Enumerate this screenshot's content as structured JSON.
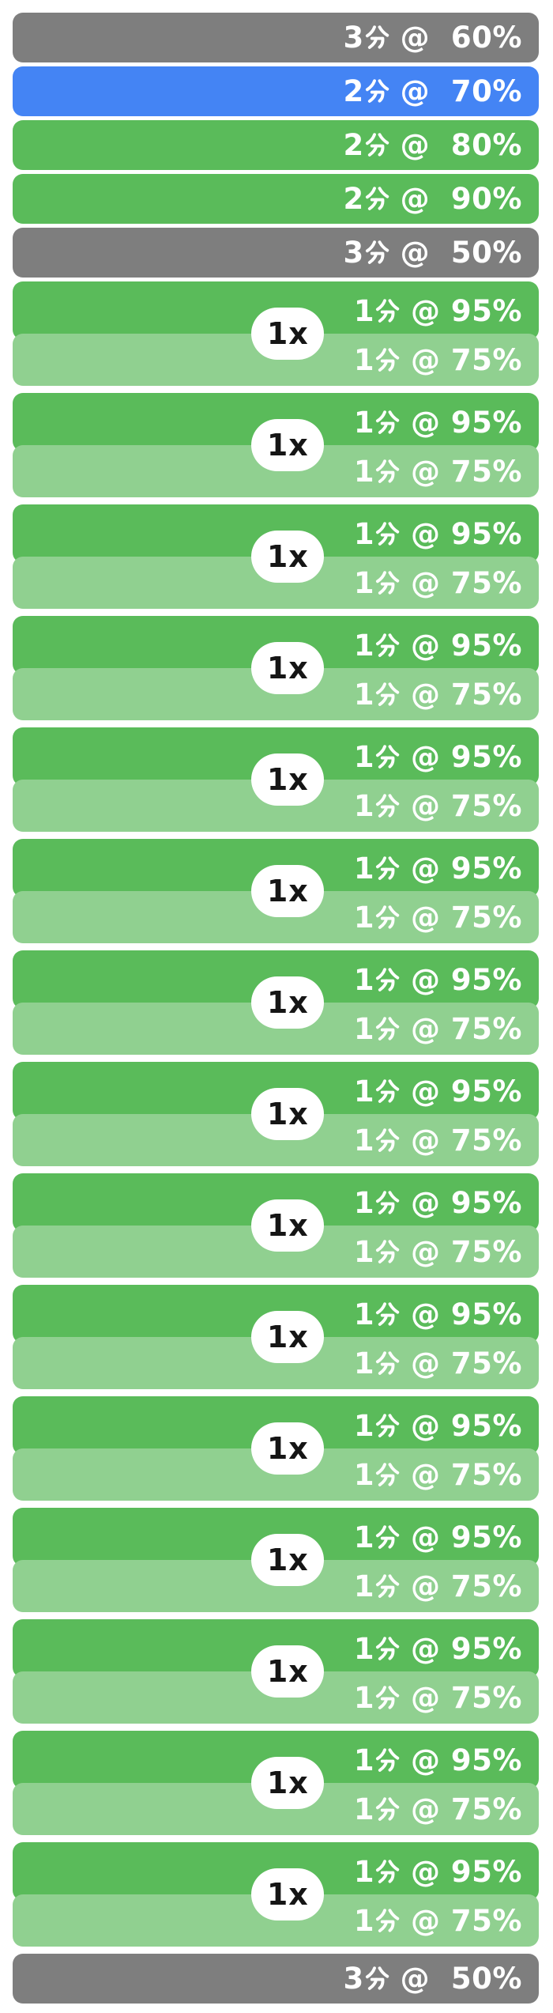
{
  "colors": {
    "gray": "#7e7e7e",
    "blue": "#4484f4",
    "green": "#5abb5a",
    "green_light": "#90d090",
    "bar_text": "#ffffff",
    "badge_bg": "#ffffff",
    "badge_text": "#151515",
    "page_bg": "#ffffff"
  },
  "intervals": [
    {
      "type": "single",
      "color": "gray",
      "label": "3分 @  60%"
    },
    {
      "type": "single",
      "color": "blue",
      "label": "2分 @  70%"
    },
    {
      "type": "single",
      "color": "green",
      "label": "2分 @  80%"
    },
    {
      "type": "single",
      "color": "green",
      "label": "2分 @  90%"
    },
    {
      "type": "single",
      "color": "gray",
      "label": "3分 @  50%"
    },
    {
      "type": "repeat",
      "badge": "1x",
      "top": {
        "color": "green",
        "label": "1分 @ 95%"
      },
      "bottom": {
        "color": "green_light",
        "label": "1分 @ 75%"
      }
    },
    {
      "type": "repeat",
      "badge": "1x",
      "top": {
        "color": "green",
        "label": "1分 @ 95%"
      },
      "bottom": {
        "color": "green_light",
        "label": "1分 @ 75%"
      }
    },
    {
      "type": "repeat",
      "badge": "1x",
      "top": {
        "color": "green",
        "label": "1分 @ 95%"
      },
      "bottom": {
        "color": "green_light",
        "label": "1分 @ 75%"
      }
    },
    {
      "type": "repeat",
      "badge": "1x",
      "top": {
        "color": "green",
        "label": "1分 @ 95%"
      },
      "bottom": {
        "color": "green_light",
        "label": "1分 @ 75%"
      }
    },
    {
      "type": "repeat",
      "badge": "1x",
      "top": {
        "color": "green",
        "label": "1分 @ 95%"
      },
      "bottom": {
        "color": "green_light",
        "label": "1分 @ 75%"
      }
    },
    {
      "type": "repeat",
      "badge": "1x",
      "top": {
        "color": "green",
        "label": "1分 @ 95%"
      },
      "bottom": {
        "color": "green_light",
        "label": "1分 @ 75%"
      }
    },
    {
      "type": "repeat",
      "badge": "1x",
      "top": {
        "color": "green",
        "label": "1分 @ 95%"
      },
      "bottom": {
        "color": "green_light",
        "label": "1分 @ 75%"
      }
    },
    {
      "type": "repeat",
      "badge": "1x",
      "top": {
        "color": "green",
        "label": "1分 @ 95%"
      },
      "bottom": {
        "color": "green_light",
        "label": "1分 @ 75%"
      }
    },
    {
      "type": "repeat",
      "badge": "1x",
      "top": {
        "color": "green",
        "label": "1分 @ 95%"
      },
      "bottom": {
        "color": "green_light",
        "label": "1分 @ 75%"
      }
    },
    {
      "type": "repeat",
      "badge": "1x",
      "top": {
        "color": "green",
        "label": "1分 @ 95%"
      },
      "bottom": {
        "color": "green_light",
        "label": "1分 @ 75%"
      }
    },
    {
      "type": "repeat",
      "badge": "1x",
      "top": {
        "color": "green",
        "label": "1分 @ 95%"
      },
      "bottom": {
        "color": "green_light",
        "label": "1分 @ 75%"
      }
    },
    {
      "type": "repeat",
      "badge": "1x",
      "top": {
        "color": "green",
        "label": "1分 @ 95%"
      },
      "bottom": {
        "color": "green_light",
        "label": "1分 @ 75%"
      }
    },
    {
      "type": "repeat",
      "badge": "1x",
      "top": {
        "color": "green",
        "label": "1分 @ 95%"
      },
      "bottom": {
        "color": "green_light",
        "label": "1分 @ 75%"
      }
    },
    {
      "type": "repeat",
      "badge": "1x",
      "top": {
        "color": "green",
        "label": "1分 @ 95%"
      },
      "bottom": {
        "color": "green_light",
        "label": "1分 @ 75%"
      }
    },
    {
      "type": "repeat",
      "badge": "1x",
      "top": {
        "color": "green",
        "label": "1分 @ 95%"
      },
      "bottom": {
        "color": "green_light",
        "label": "1分 @ 75%"
      }
    },
    {
      "type": "single",
      "color": "gray",
      "label": "3分 @  50%"
    }
  ]
}
